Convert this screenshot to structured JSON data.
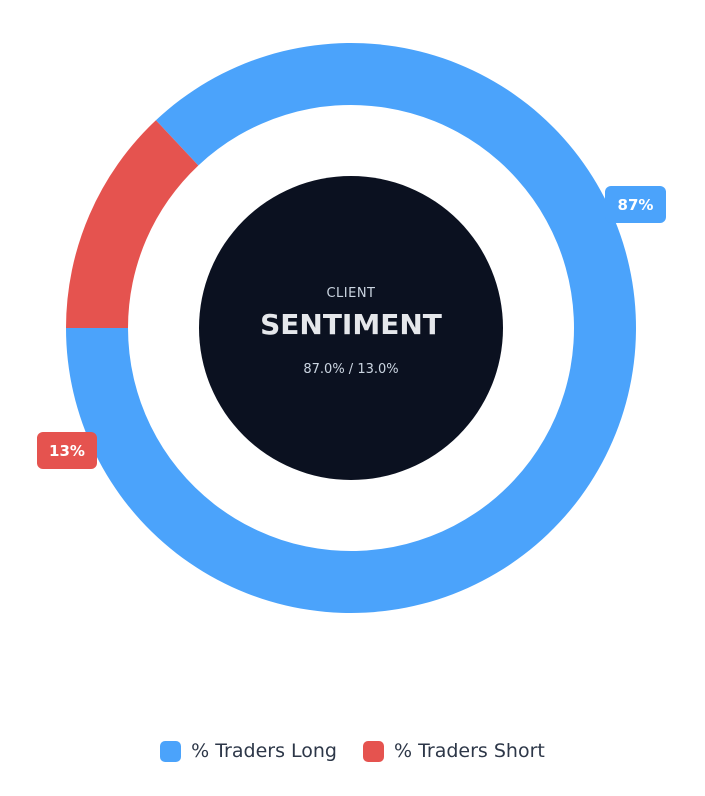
{
  "chart_data": {
    "type": "pie",
    "variant": "doughnut",
    "categories": [
      "% Traders Long",
      "% Traders Short"
    ],
    "values": [
      87,
      13
    ],
    "colors": [
      "#4ba3fb",
      "#e5534f"
    ],
    "data_labels": [
      "87%",
      "13%"
    ],
    "legend_position": "bottom",
    "center": {
      "line1": "CLIENT",
      "line2": "SENTIMENT",
      "line3": "87.0% / 13.0%"
    }
  }
}
